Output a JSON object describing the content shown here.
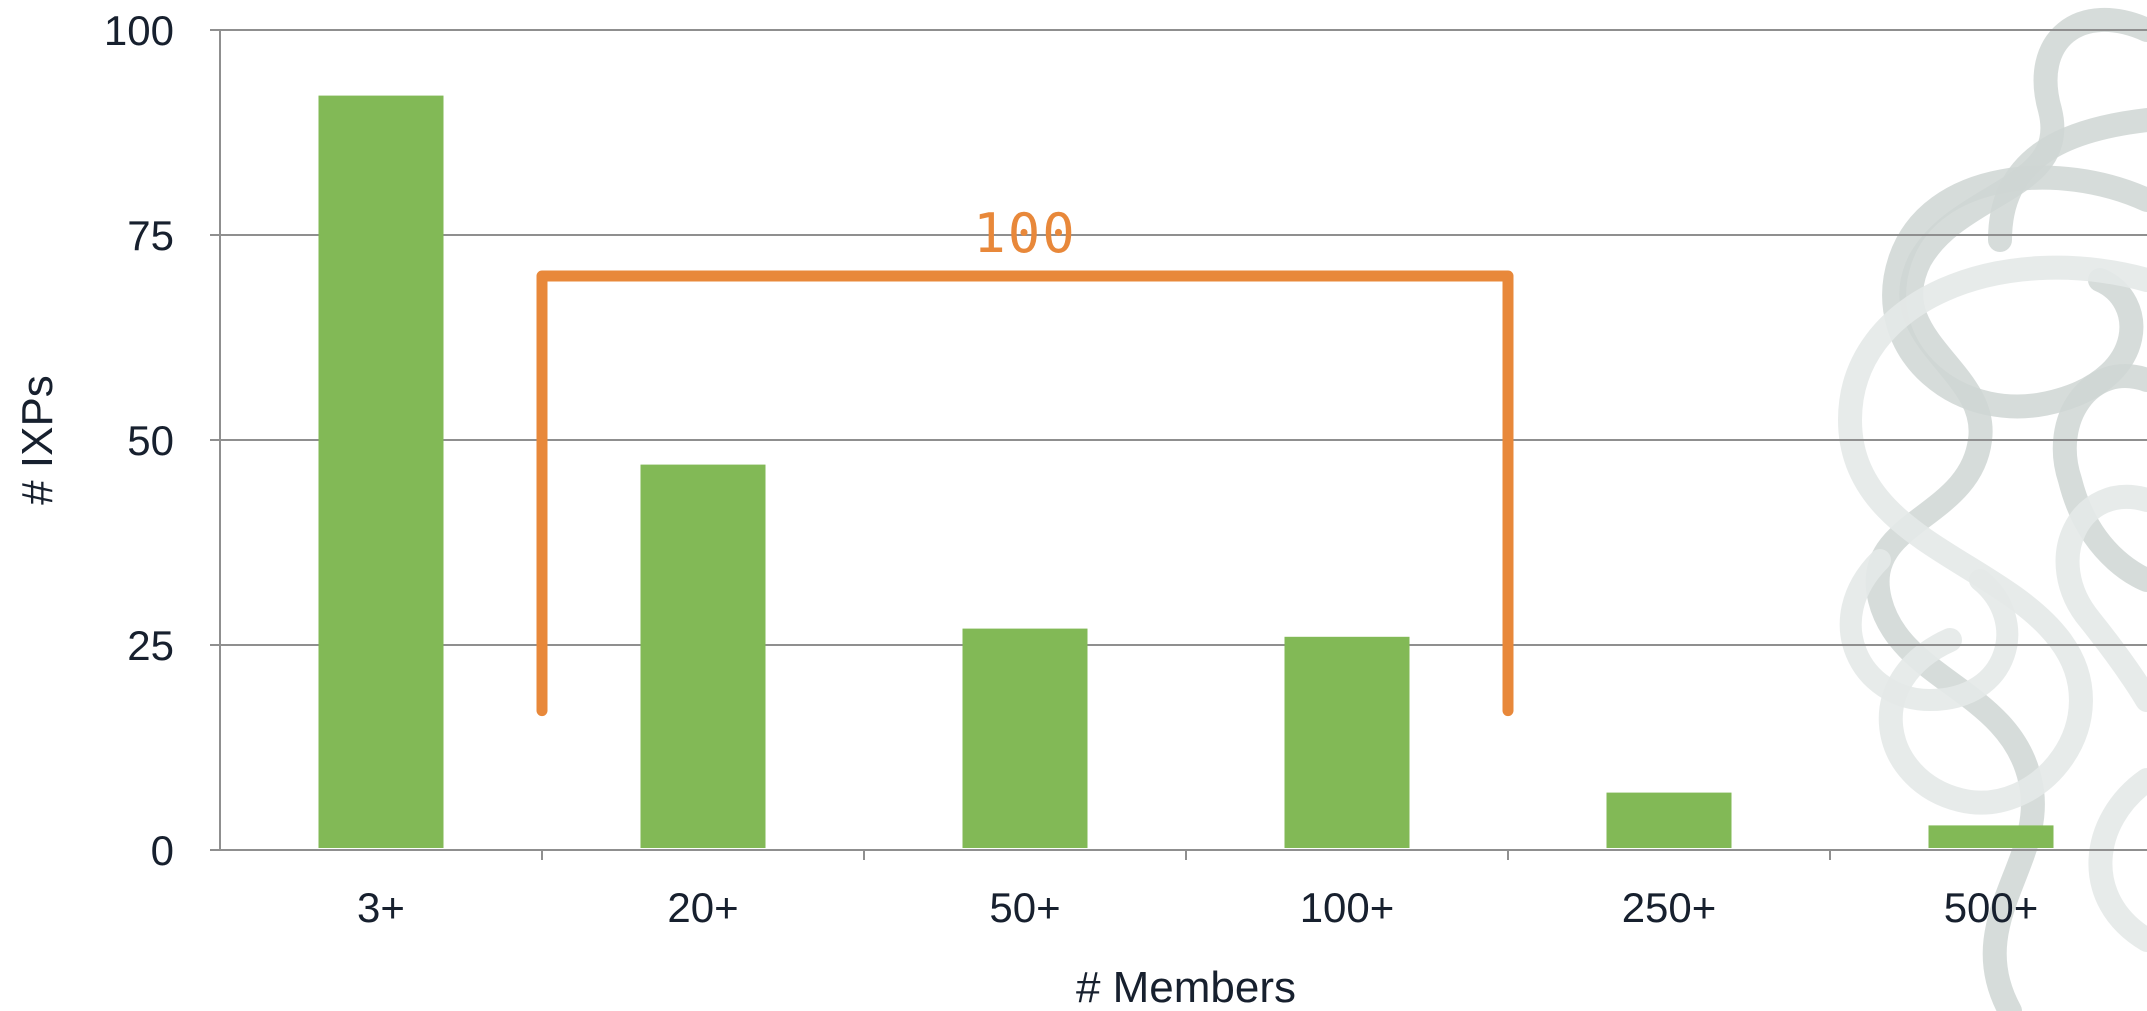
{
  "chart_data": {
    "type": "bar",
    "title": "",
    "xlabel": "# Members",
    "ylabel": "# IXPs",
    "categories": [
      "3+",
      "20+",
      "50+",
      "100+",
      "250+",
      "500+"
    ],
    "values": [
      92,
      47,
      27,
      26,
      7,
      3
    ],
    "ylim": [
      0,
      100
    ],
    "yticks": [
      0,
      25,
      50,
      75,
      100
    ],
    "grid": true,
    "legend": "none",
    "annotations": [
      {
        "type": "bracket",
        "from_category": "20+",
        "to_category": "100+",
        "level": 70,
        "bottom": 17,
        "text": "100"
      }
    ]
  },
  "colors": {
    "bar": "#82b956",
    "grid": "#8f8f8f",
    "annotation": "#e8883a",
    "text": "#17202e",
    "decoration": "#cfd6d4"
  },
  "decoration": {
    "icon": "celtic-knot-watermark-icon"
  }
}
